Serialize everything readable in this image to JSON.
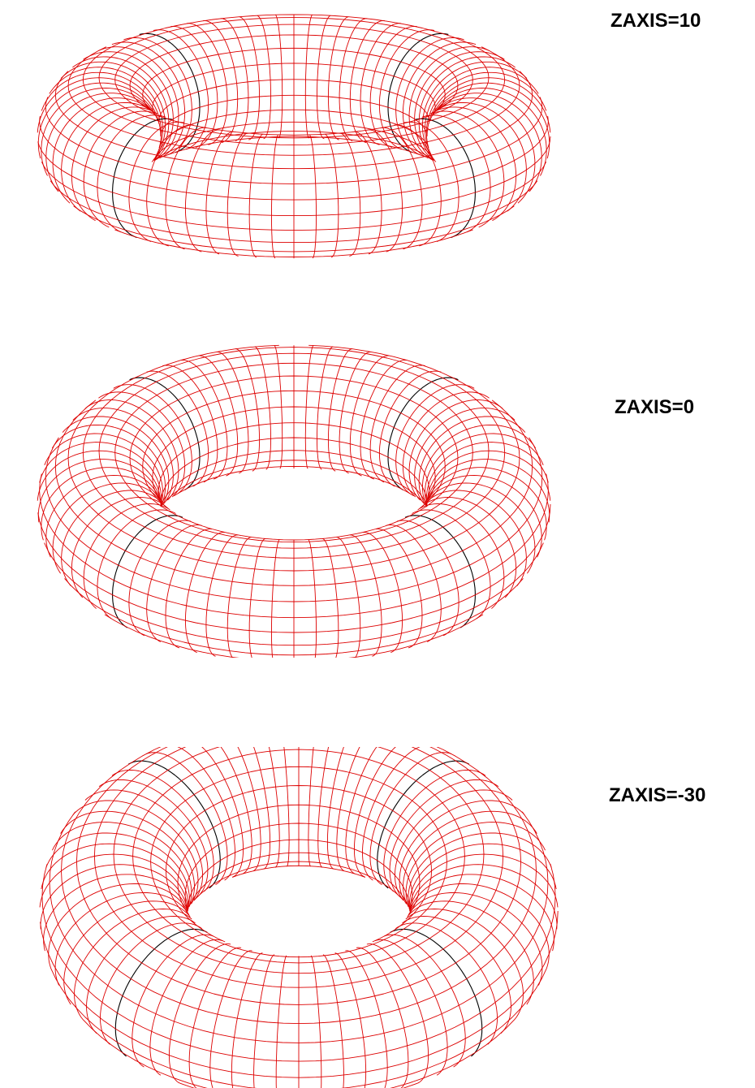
{
  "figures": [
    {
      "label": "ZAXIS=10"
    },
    {
      "label": "ZAXIS=0"
    },
    {
      "label": "ZAXIS=-30"
    }
  ],
  "colors": {
    "mesh": "#dd0000",
    "highlight": "#000000",
    "background": "#ffffff"
  }
}
